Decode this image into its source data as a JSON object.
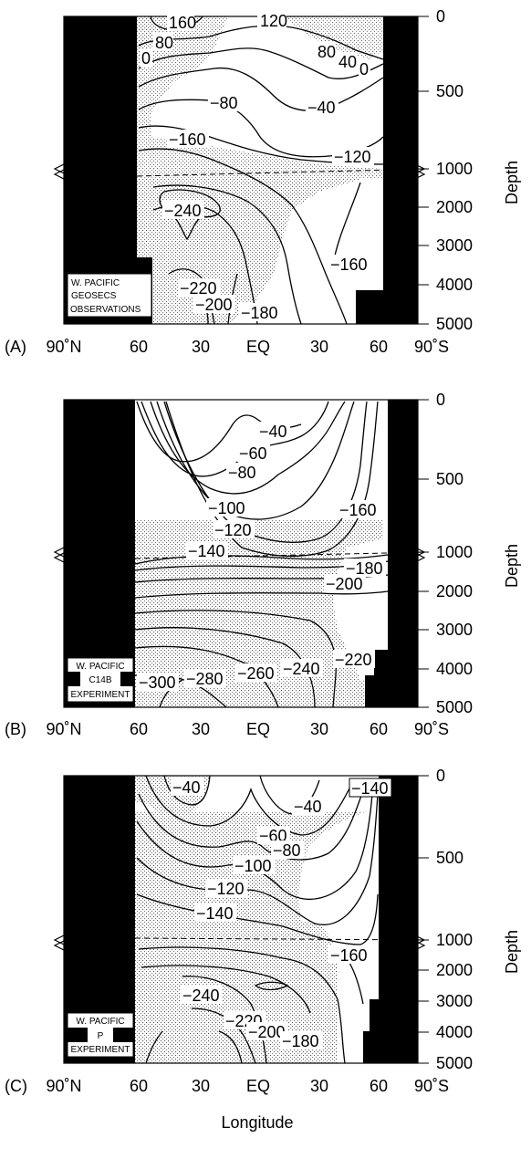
{
  "chart_data": [
    {
      "type": "contour",
      "panel": "(A)",
      "box_label": [
        "W. PACIFIC",
        "GEOSECS",
        "OBSERVATIONS"
      ],
      "x_ticks": [
        "90˚N",
        "60",
        "30",
        "EQ",
        "30",
        "60",
        "90˚S"
      ],
      "y_ticks": [
        "0",
        "500",
        "1000",
        "2000",
        "3000",
        "4000",
        "5000"
      ],
      "ylabel": "Depth",
      "contour_labels": [
        "160",
        "120",
        "80",
        "80",
        "40",
        "0",
        "0",
        "−80",
        "−40",
        "−160",
        "−120",
        "−240",
        "−160",
        "−220",
        "−200",
        "−180"
      ]
    },
    {
      "type": "contour",
      "panel": "(B)",
      "box_label": [
        "W. PACIFIC",
        "C14B",
        "EXPERIMENT"
      ],
      "x_ticks": [
        "90˚N",
        "60",
        "30",
        "EQ",
        "30",
        "60",
        "90˚S"
      ],
      "y_ticks": [
        "0",
        "500",
        "1000",
        "2000",
        "3000",
        "4000",
        "5000"
      ],
      "ylabel": "Depth",
      "contour_labels": [
        "−40",
        "−60",
        "−80",
        "−100",
        "−120",
        "−160",
        "−140",
        "−180",
        "−200",
        "−220",
        "−300",
        "−280",
        "−260",
        "−240"
      ]
    },
    {
      "type": "contour",
      "panel": "(C)",
      "box_label": [
        "W. PACIFIC",
        "P",
        "EXPERIMENT"
      ],
      "x_ticks": [
        "90˚N",
        "60",
        "30",
        "EQ",
        "30",
        "60",
        "90˚S"
      ],
      "y_ticks": [
        "0",
        "500",
        "1000",
        "2000",
        "3000",
        "4000",
        "5000"
      ],
      "ylabel": "Depth",
      "contour_labels": [
        "−40",
        "−40",
        "−140",
        "−60",
        "−80",
        "−100",
        "−120",
        "−140",
        "−160",
        "−240",
        "−220",
        "−200",
        "−180"
      ]
    }
  ],
  "xlabel": "Longitude"
}
